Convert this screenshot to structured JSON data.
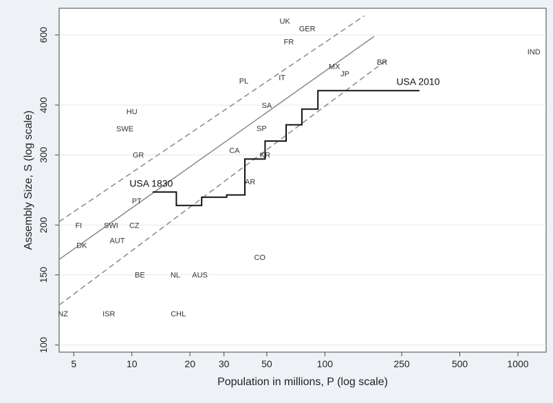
{
  "chart_data": {
    "type": "scatter",
    "xlabel": "Population in millions, P (log scale)",
    "ylabel": "Assembly Size, S (log scale)",
    "x_scale": "log",
    "y_scale": "log",
    "xlim": [
      4.2,
      1400
    ],
    "ylim": [
      96,
      700
    ],
    "x_ticks": [
      5,
      10,
      20,
      30,
      50,
      100,
      250,
      500,
      1000
    ],
    "y_ticks": [
      100,
      150,
      200,
      300,
      400,
      600
    ],
    "grid": "horizontal",
    "points": [
      {
        "label": "NZ",
        "x": 4.4,
        "y": 120
      },
      {
        "label": "DK",
        "x": 5.5,
        "y": 178
      },
      {
        "label": "FI",
        "x": 5.3,
        "y": 200
      },
      {
        "label": "ISR",
        "x": 7.6,
        "y": 120
      },
      {
        "label": "SWI",
        "x": 7.8,
        "y": 200
      },
      {
        "label": "AUT",
        "x": 8.4,
        "y": 183
      },
      {
        "label": "CZ",
        "x": 10.3,
        "y": 200
      },
      {
        "label": "PT",
        "x": 10.6,
        "y": 230
      },
      {
        "label": "BE",
        "x": 11.0,
        "y": 150
      },
      {
        "label": "GR",
        "x": 10.8,
        "y": 300
      },
      {
        "label": "SWE",
        "x": 9.2,
        "y": 349
      },
      {
        "label": "HU",
        "x": 10.0,
        "y": 386
      },
      {
        "label": "NL",
        "x": 16.8,
        "y": 150
      },
      {
        "label": "AUS",
        "x": 22.5,
        "y": 150
      },
      {
        "label": "CHL",
        "x": 17.4,
        "y": 120
      },
      {
        "label": "CO",
        "x": 46.0,
        "y": 166
      },
      {
        "label": "AR",
        "x": 41.0,
        "y": 257
      },
      {
        "label": "CA",
        "x": 34.0,
        "y": 308
      },
      {
        "label": "KR",
        "x": 49.0,
        "y": 300
      },
      {
        "label": "SP",
        "x": 47.0,
        "y": 350
      },
      {
        "label": "SA",
        "x": 50.0,
        "y": 400
      },
      {
        "label": "PL",
        "x": 38.0,
        "y": 460
      },
      {
        "label": "IT",
        "x": 60.0,
        "y": 470
      },
      {
        "label": "FR",
        "x": 65.0,
        "y": 577
      },
      {
        "label": "UK",
        "x": 62.0,
        "y": 650
      },
      {
        "label": "GER",
        "x": 81.0,
        "y": 622
      },
      {
        "label": "MX",
        "x": 112.0,
        "y": 500
      },
      {
        "label": "JP",
        "x": 127.0,
        "y": 480
      },
      {
        "label": "BR",
        "x": 198.0,
        "y": 513
      },
      {
        "label": "IND",
        "x": 1210.0,
        "y": 545
      }
    ],
    "lines": [
      {
        "style": "solid",
        "points": [
          [
            4.2,
            164
          ],
          [
            180,
            595
          ]
        ]
      },
      {
        "style": "dashed",
        "points": [
          [
            4.2,
            204
          ],
          [
            160,
            670
          ]
        ]
      },
      {
        "style": "dashed",
        "points": [
          [
            4.2,
            126
          ],
          [
            210,
            520
          ]
        ]
      }
    ],
    "step_series": {
      "points": [
        [
          12.8,
          242
        ],
        [
          17.0,
          242
        ],
        [
          17.0,
          224
        ],
        [
          23.0,
          224
        ],
        [
          23.0,
          235
        ],
        [
          31.0,
          235
        ],
        [
          31.0,
          238
        ],
        [
          38.5,
          238
        ],
        [
          38.5,
          293
        ],
        [
          49.0,
          293
        ],
        [
          49.0,
          325
        ],
        [
          63.0,
          325
        ],
        [
          63.0,
          357
        ],
        [
          76.0,
          357
        ],
        [
          76.0,
          391
        ],
        [
          92.0,
          391
        ],
        [
          92.0,
          435
        ],
        [
          309.0,
          435
        ]
      ]
    },
    "annotations": [
      {
        "text": "USA 1830",
        "x": 12.8,
        "y": 242
      },
      {
        "text": "USA 2010",
        "x": 309.0,
        "y": 435
      }
    ]
  }
}
